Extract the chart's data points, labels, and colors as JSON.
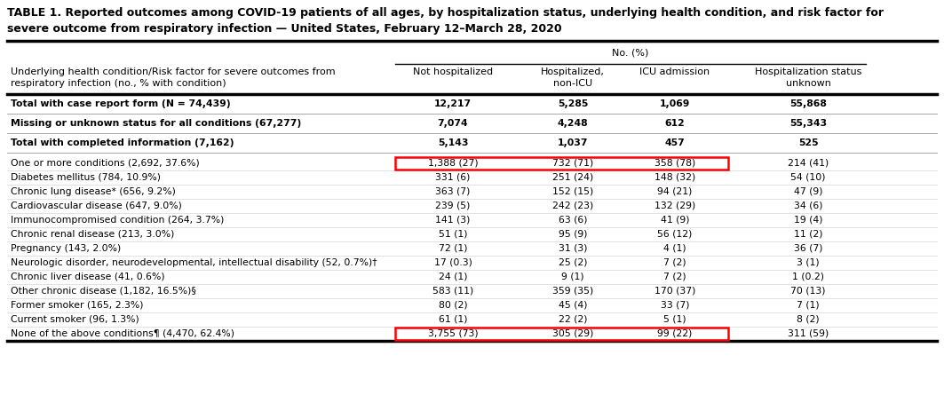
{
  "title_line1": "TABLE 1. Reported outcomes among COVID-19 patients of all ages, by hospitalization status, underlying health condition, and risk factor for",
  "title_line2": "severe outcome from respiratory infection — United States, February 12–March 28, 2020",
  "col_header_left": "Underlying health condition/Risk factor for severe outcomes from\nrespiratory infection (no., % with condition)",
  "col_headers": [
    "Not hospitalized",
    "Hospitalized,\nnon-ICU",
    "ICU admission",
    "Hospitalization status\nunknown"
  ],
  "no_pct_label": "No. (%)",
  "rows": [
    {
      "label": "Total with case report form (N = 74,439)",
      "vals": [
        "12,217",
        "5,285",
        "1,069",
        "55,868"
      ],
      "bold": true,
      "highlight": false,
      "tall": true
    },
    {
      "label": "Missing or unknown status for all conditions (67,277)",
      "vals": [
        "7,074",
        "4,248",
        "612",
        "55,343"
      ],
      "bold": true,
      "highlight": false,
      "tall": true
    },
    {
      "label": "Total with completed information (7,162)",
      "vals": [
        "5,143",
        "1,037",
        "457",
        "525"
      ],
      "bold": true,
      "highlight": false,
      "tall": true
    },
    {
      "label": "One or more conditions (2,692, 37.6%)",
      "vals": [
        "1,388 (27)",
        "732 (71)",
        "358 (78)",
        "214 (41)"
      ],
      "bold": false,
      "highlight": true,
      "tall": false
    },
    {
      "label": "Diabetes mellitus (784, 10.9%)",
      "vals": [
        "331 (6)",
        "251 (24)",
        "148 (32)",
        "54 (10)"
      ],
      "bold": false,
      "highlight": false,
      "tall": false
    },
    {
      "label": "Chronic lung disease* (656, 9.2%)",
      "vals": [
        "363 (7)",
        "152 (15)",
        "94 (21)",
        "47 (9)"
      ],
      "bold": false,
      "highlight": false,
      "tall": false
    },
    {
      "label": "Cardiovascular disease (647, 9.0%)",
      "vals": [
        "239 (5)",
        "242 (23)",
        "132 (29)",
        "34 (6)"
      ],
      "bold": false,
      "highlight": false,
      "tall": false
    },
    {
      "label": "Immunocompromised condition (264, 3.7%)",
      "vals": [
        "141 (3)",
        "63 (6)",
        "41 (9)",
        "19 (4)"
      ],
      "bold": false,
      "highlight": false,
      "tall": false
    },
    {
      "label": "Chronic renal disease (213, 3.0%)",
      "vals": [
        "51 (1)",
        "95 (9)",
        "56 (12)",
        "11 (2)"
      ],
      "bold": false,
      "highlight": false,
      "tall": false
    },
    {
      "label": "Pregnancy (143, 2.0%)",
      "vals": [
        "72 (1)",
        "31 (3)",
        "4 (1)",
        "36 (7)"
      ],
      "bold": false,
      "highlight": false,
      "tall": false
    },
    {
      "label": "Neurologic disorder, neurodevelopmental, intellectual disability (52, 0.7%)†",
      "vals": [
        "17 (0.3)",
        "25 (2)",
        "7 (2)",
        "3 (1)"
      ],
      "bold": false,
      "highlight": false,
      "tall": false
    },
    {
      "label": "Chronic liver disease (41, 0.6%)",
      "vals": [
        "24 (1)",
        "9 (1)",
        "7 (2)",
        "1 (0.2)"
      ],
      "bold": false,
      "highlight": false,
      "tall": false
    },
    {
      "label": "Other chronic disease (1,182, 16.5%)§",
      "vals": [
        "583 (11)",
        "359 (35)",
        "170 (37)",
        "70 (13)"
      ],
      "bold": false,
      "highlight": false,
      "tall": false
    },
    {
      "label": "Former smoker (165, 2.3%)",
      "vals": [
        "80 (2)",
        "45 (4)",
        "33 (7)",
        "7 (1)"
      ],
      "bold": false,
      "highlight": false,
      "tall": false
    },
    {
      "label": "Current smoker (96, 1.3%)",
      "vals": [
        "61 (1)",
        "22 (2)",
        "5 (1)",
        "8 (2)"
      ],
      "bold": false,
      "highlight": false,
      "tall": false
    },
    {
      "label": "None of the above conditions¶ (4,470, 62.4%)",
      "vals": [
        "3,755 (73)",
        "305 (29)",
        "99 (22)",
        "311 (59)"
      ],
      "bold": false,
      "highlight": true,
      "tall": false
    }
  ],
  "highlight_rect_color": "#ff0000",
  "bg_color": "#ffffff",
  "text_color": "#000000",
  "line_color": "#000000",
  "font_size_title": 9.0,
  "font_size_header": 8.0,
  "font_size_data": 7.8
}
